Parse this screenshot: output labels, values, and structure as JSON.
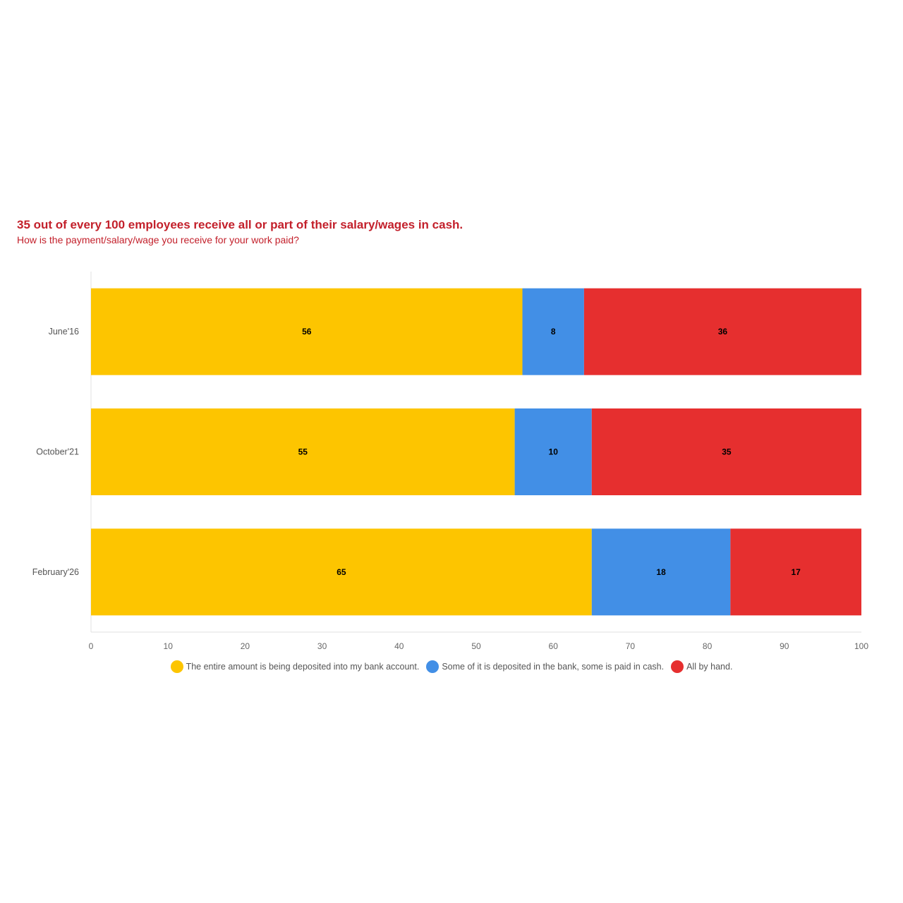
{
  "chart_data": {
    "type": "bar",
    "orientation": "horizontal",
    "stacked": true,
    "title": "35 out of every 100 employees receive all or part of their salary/wages in cash.",
    "subtitle": "How is the payment/salary/wage you receive for your work paid?",
    "categories": [
      "June'16",
      "October'21",
      "February'26"
    ],
    "series": [
      {
        "name": "The entire amount is being deposited into my bank account.",
        "color": "#fdc500",
        "values": [
          56,
          55,
          65
        ]
      },
      {
        "name": "Some of it is deposited in the bank, some is paid in cash.",
        "color": "#428fe6",
        "values": [
          8,
          10,
          18
        ]
      },
      {
        "name": "All by hand.",
        "color": "#e62f2f",
        "values": [
          36,
          35,
          17
        ]
      }
    ],
    "xlim": [
      0,
      100
    ],
    "xticks": [
      "0",
      "10",
      "20",
      "30",
      "40",
      "50",
      "60",
      "70",
      "80",
      "90",
      "100"
    ],
    "grid": false,
    "legend_position": "bottom"
  }
}
